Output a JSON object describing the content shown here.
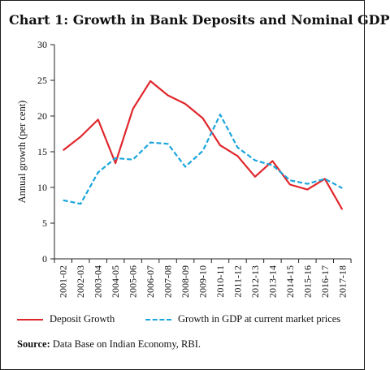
{
  "chart_data": {
    "type": "line",
    "title": "Chart 1: Growth in Bank Deposits and Nominal GDP",
    "ylabel": "Annual growth (per cent)",
    "xlabel": "",
    "ylim": [
      0,
      30
    ],
    "yticks": [
      0,
      5,
      10,
      15,
      20,
      25,
      30
    ],
    "categories": [
      "2001-02",
      "2002-03",
      "2003-04",
      "2004-05",
      "2005-06",
      "2006-07",
      "2007-08",
      "2008-09",
      "2009-10",
      "2010-11",
      "2011-12",
      "2012-13",
      "2013-14",
      "2014-15",
      "2015-16",
      "2016-17",
      "2017-18"
    ],
    "series": [
      {
        "name": "Deposit Growth",
        "style": "solid",
        "color": "#e0262c",
        "values": [
          15.2,
          17.1,
          19.5,
          13.4,
          21.0,
          24.9,
          22.9,
          21.7,
          19.7,
          15.9,
          14.4,
          11.5,
          13.7,
          10.4,
          9.7,
          11.2,
          6.9
        ]
      },
      {
        "name": "Growth in GDP at current market prices",
        "style": "dashed",
        "color": "#1aa5dc",
        "values": [
          8.2,
          7.7,
          12.1,
          14.1,
          13.9,
          16.3,
          16.1,
          12.9,
          15.1,
          20.2,
          15.6,
          13.8,
          13.1,
          11.0,
          10.5,
          11.2,
          9.9
        ]
      }
    ],
    "legend_position": "bottom",
    "grid": false
  },
  "source": {
    "label": "Source:",
    "text": "Data Base on Indian Economy, RBI."
  }
}
